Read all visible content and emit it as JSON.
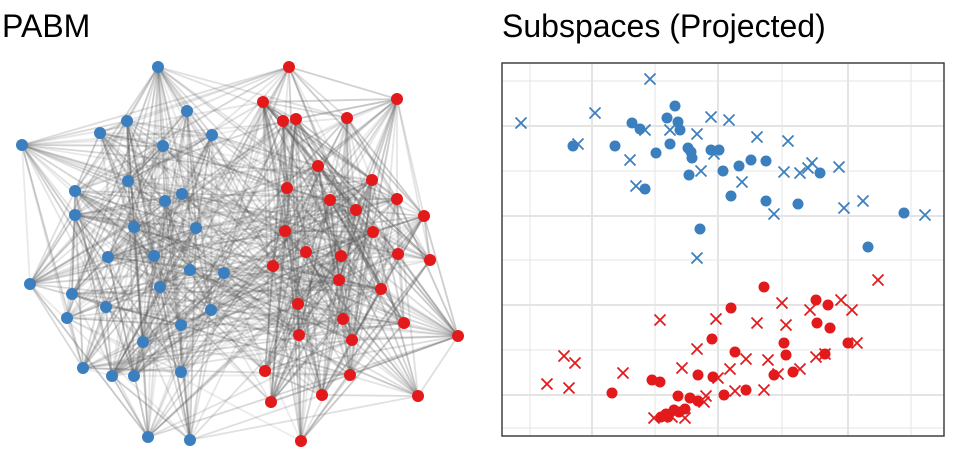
{
  "colors": {
    "group1": "#3b7fbf",
    "group2": "#e31a1c",
    "edge": "#5a5a5a",
    "grid": "#e4e4e4",
    "frame": "#333333"
  },
  "chart_data": [
    {
      "type": "network",
      "title": "PABM",
      "groups": [
        "group1",
        "group2"
      ],
      "nodes_group1": [
        [
          158,
          67
        ],
        [
          22,
          145
        ],
        [
          100,
          133
        ],
        [
          127,
          121
        ],
        [
          187,
          111
        ],
        [
          212,
          135
        ],
        [
          163,
          146
        ],
        [
          75,
          191
        ],
        [
          128,
          181
        ],
        [
          165,
          201
        ],
        [
          182,
          194
        ],
        [
          75,
          215
        ],
        [
          134,
          227
        ],
        [
          196,
          228
        ],
        [
          30,
          284
        ],
        [
          72,
          294
        ],
        [
          108,
          257
        ],
        [
          154,
          256
        ],
        [
          190,
          270
        ],
        [
          224,
          273
        ],
        [
          160,
          287
        ],
        [
          106,
          307
        ],
        [
          67,
          318
        ],
        [
          211,
          310
        ],
        [
          181,
          325
        ],
        [
          143,
          342
        ],
        [
          83,
          368
        ],
        [
          112,
          376
        ],
        [
          134,
          376
        ],
        [
          181,
          372
        ],
        [
          148,
          437
        ],
        [
          190,
          440
        ]
      ],
      "nodes_group2": [
        [
          289,
          67
        ],
        [
          263,
          102
        ],
        [
          283,
          121
        ],
        [
          296,
          119
        ],
        [
          347,
          118
        ],
        [
          397,
          99
        ],
        [
          318,
          166
        ],
        [
          287,
          188
        ],
        [
          372,
          180
        ],
        [
          330,
          200
        ],
        [
          356,
          210
        ],
        [
          397,
          199
        ],
        [
          424,
          216
        ],
        [
          285,
          231
        ],
        [
          306,
          252
        ],
        [
          373,
          232
        ],
        [
          398,
          254
        ],
        [
          430,
          260
        ],
        [
          273,
          266
        ],
        [
          341,
          256
        ],
        [
          381,
          289
        ],
        [
          339,
          280
        ],
        [
          298,
          304
        ],
        [
          343,
          319
        ],
        [
          404,
          323
        ],
        [
          299,
          335
        ],
        [
          352,
          340
        ],
        [
          458,
          336
        ],
        [
          265,
          371
        ],
        [
          350,
          375
        ],
        [
          271,
          402
        ],
        [
          322,
          395
        ],
        [
          418,
          396
        ],
        [
          301,
          441
        ]
      ],
      "edge_count": 700
    },
    {
      "type": "scatter",
      "title": "Subspaces (Projected)",
      "markers": {
        "circle": "●",
        "cross": "×"
      },
      "series": [
        {
          "color": "group1",
          "marker": "circle",
          "points": [
            [
              573,
              146
            ],
            [
              615,
              146
            ],
            [
              632,
              123
            ],
            [
              640,
              129
            ],
            [
              656,
              153
            ],
            [
              667,
              118
            ],
            [
              670,
              144
            ],
            [
              675,
              106
            ],
            [
              678,
              122
            ],
            [
              680,
              130
            ],
            [
              688,
              148
            ],
            [
              691,
              152
            ],
            [
              689,
              175
            ],
            [
              711,
              150
            ],
            [
              719,
              150
            ],
            [
              723,
              171
            ],
            [
              739,
              166
            ],
            [
              751,
              160
            ],
            [
              766,
              161
            ],
            [
              731,
              196
            ],
            [
              766,
              201
            ],
            [
              798,
              204
            ],
            [
              820,
              173
            ],
            [
              645,
              189
            ],
            [
              700,
              229
            ],
            [
              904,
              213
            ],
            [
              868,
              247
            ],
            [
              692,
              158
            ]
          ]
        },
        {
          "color": "group1",
          "marker": "cross",
          "points": [
            [
              521,
              123
            ],
            [
              578,
              144
            ],
            [
              595,
              113
            ],
            [
              630,
              160
            ],
            [
              636,
              186
            ],
            [
              645,
              130
            ],
            [
              650,
              79
            ],
            [
              670,
              130
            ],
            [
              697,
              134
            ],
            [
              701,
              171
            ],
            [
              711,
              117
            ],
            [
              714,
              154
            ],
            [
              729,
              120
            ],
            [
              742,
              182
            ],
            [
              757,
              137
            ],
            [
              774,
              214
            ],
            [
              784,
              172
            ],
            [
              788,
              141
            ],
            [
              800,
              173
            ],
            [
              808,
              168
            ],
            [
              812,
              163
            ],
            [
              839,
              167
            ],
            [
              844,
              208
            ],
            [
              863,
              201
            ],
            [
              925,
              215
            ],
            [
              697,
              258
            ]
          ]
        },
        {
          "color": "group2",
          "marker": "circle",
          "points": [
            [
              612,
              393
            ],
            [
              652,
              380
            ],
            [
              660,
              382
            ],
            [
              661,
              417
            ],
            [
              666,
              414
            ],
            [
              678,
              396
            ],
            [
              679,
              412
            ],
            [
              685,
              409
            ],
            [
              690,
              398
            ],
            [
              698,
              375
            ],
            [
              698,
              401
            ],
            [
              713,
              377
            ],
            [
              712,
              339
            ],
            [
              724,
              395
            ],
            [
              735,
              352
            ],
            [
              731,
              308
            ],
            [
              746,
              390
            ],
            [
              764,
              287
            ],
            [
              774,
              375
            ],
            [
              784,
              343
            ],
            [
              786,
              355
            ],
            [
              793,
              372
            ],
            [
              816,
              300
            ],
            [
              828,
              305
            ],
            [
              817,
              323
            ],
            [
              830,
              328
            ],
            [
              825,
              354
            ],
            [
              848,
              343
            ],
            [
              668,
              417
            ],
            [
              674,
              410
            ]
          ]
        },
        {
          "color": "group2",
          "marker": "cross",
          "points": [
            [
              547,
              384
            ],
            [
              569,
              388
            ],
            [
              564,
              356
            ],
            [
              575,
              363
            ],
            [
              623,
              373
            ],
            [
              660,
              320
            ],
            [
              654,
              418
            ],
            [
              672,
              417
            ],
            [
              685,
              418
            ],
            [
              682,
              368
            ],
            [
              697,
              349
            ],
            [
              716,
              319
            ],
            [
              704,
              402
            ],
            [
              718,
              378
            ],
            [
              730,
              369
            ],
            [
              735,
              391
            ],
            [
              746,
              359
            ],
            [
              757,
              323
            ],
            [
              764,
              390
            ],
            [
              768,
              360
            ],
            [
              778,
              374
            ],
            [
              782,
              303
            ],
            [
              786,
              325
            ],
            [
              800,
              369
            ],
            [
              810,
              310
            ],
            [
              816,
              357
            ],
            [
              825,
              354
            ],
            [
              841,
              300
            ],
            [
              852,
              310
            ],
            [
              857,
              343
            ],
            [
              878,
              280
            ],
            [
              706,
              396
            ]
          ]
        }
      ]
    }
  ]
}
